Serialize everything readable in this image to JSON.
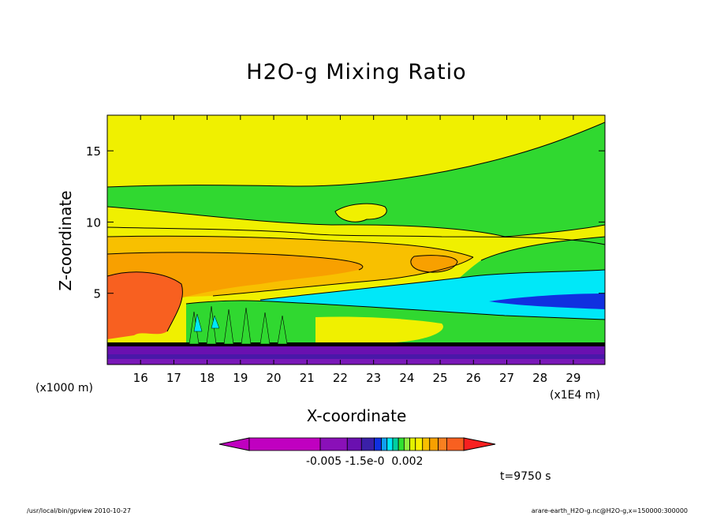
{
  "chart_data": {
    "type": "heatmap",
    "title": "H2O-g Mixing Ratio",
    "xlabel": "X-coordinate",
    "ylabel": "Z-coordinate",
    "x_unit_left": "(x1000 m)",
    "x_unit_right": "(x1E4 m)",
    "x_ticks": [
      "16",
      "17",
      "18",
      "19",
      "20",
      "21",
      "22",
      "23",
      "24",
      "25",
      "26",
      "27",
      "28",
      "29"
    ],
    "y_ticks": [
      "5",
      "10",
      "15"
    ],
    "xlim": [
      15.0,
      29.95
    ],
    "ylim": [
      0,
      17.5
    ],
    "colorbar": {
      "colors": [
        "#c000c0",
        "#c000c0",
        "#8a10b8",
        "#6a10b0",
        "#3a20a8",
        "#1030e0",
        "#10a0f0",
        "#00e8f8",
        "#00d0a0",
        "#30e030",
        "#90f040",
        "#e0f000",
        "#f8f000",
        "#f8c000",
        "#f8a000",
        "#f88020",
        "#f86020",
        "#f82020"
      ],
      "tick_labels": "-0.005 -1.5e-0  0.002"
    },
    "time_label": "t=9750 s"
  },
  "footer": {
    "left": "/usr/local/bin/gpview  2010-10-27",
    "right": "arare-earth_H2O-g.nc@H2O-g,x=150000:300000"
  }
}
